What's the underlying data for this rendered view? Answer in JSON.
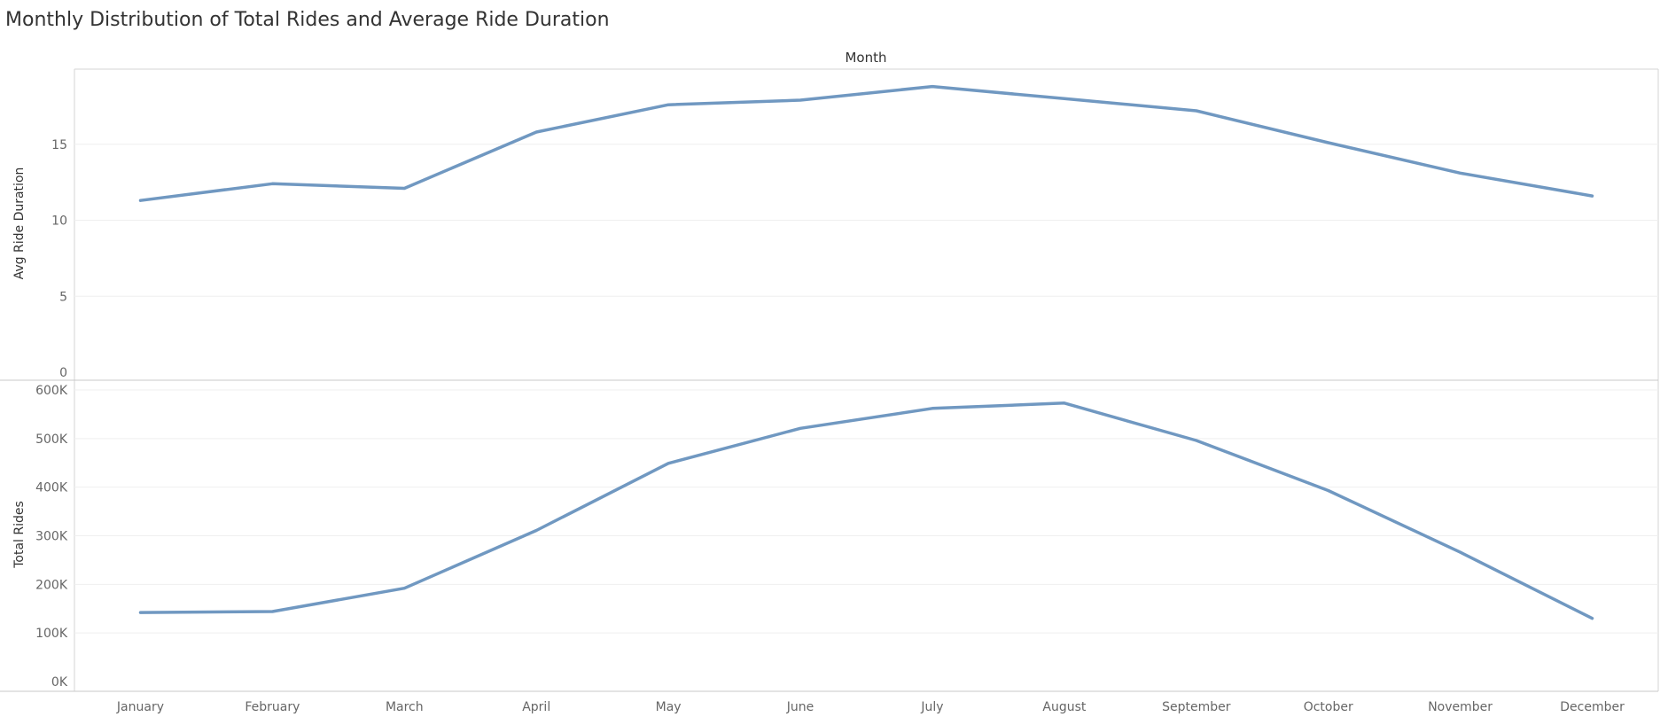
{
  "title": "Monthly Distribution of Total Rides and Average Ride Duration",
  "chart_data": {
    "type": "line",
    "xlabel": "Month",
    "categories": [
      "January",
      "February",
      "March",
      "April",
      "May",
      "June",
      "July",
      "August",
      "September",
      "October",
      "November",
      "December"
    ],
    "series": [
      {
        "ylabel": "Avg Ride Duration",
        "values": [
          11.3,
          12.4,
          12.1,
          15.8,
          17.6,
          17.9,
          18.8,
          18.0,
          17.2,
          15.1,
          13.1,
          11.6
        ],
        "ylim": [
          0,
          20
        ],
        "ticks": [
          0,
          5,
          10,
          15
        ],
        "tick_labels": [
          "0",
          "5",
          "10",
          "15"
        ]
      },
      {
        "ylabel": "Total Rides",
        "values": [
          142000,
          144000,
          192000,
          311000,
          449000,
          521000,
          562000,
          573000,
          496000,
          393000,
          266000,
          130000
        ],
        "ylim": [
          0,
          600000
        ],
        "ticks": [
          0,
          100000,
          200000,
          300000,
          400000,
          500000,
          600000
        ],
        "tick_labels": [
          "0K",
          "100K",
          "200K",
          "300K",
          "400K",
          "500K",
          "600K"
        ]
      }
    ],
    "line_color": "#7098c1",
    "grid": true
  }
}
